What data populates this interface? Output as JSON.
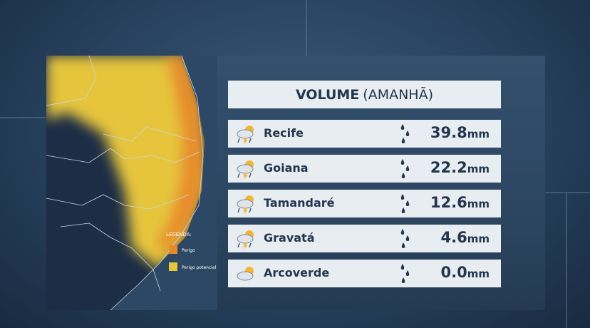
{
  "header": {
    "title": "VOLUME",
    "subtitle": "(AMANHÃ)"
  },
  "legend": {
    "title": "LEGENDA:",
    "items": [
      "Perigo",
      "Perigo potencial"
    ]
  },
  "rows": [
    {
      "city": "Recife",
      "value": "39.8",
      "unit": "mm"
    },
    {
      "city": "Goiana",
      "value": "22.2",
      "unit": "mm"
    },
    {
      "city": "Tamandaré",
      "value": "12.6",
      "unit": "mm"
    },
    {
      "city": "Gravatá",
      "value": "4.6",
      "unit": "mm"
    },
    {
      "city": "Arcoverde",
      "value": "0.0",
      "unit": "mm"
    }
  ]
}
